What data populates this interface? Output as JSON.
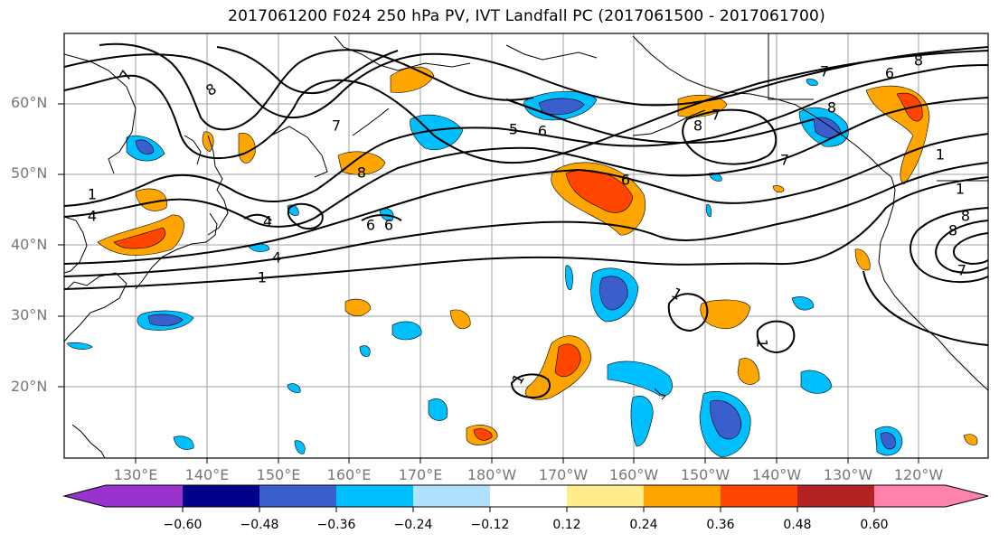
{
  "title": "2017061200 F024 250 hPa PV, IVT Landfall PC (2017061500 - 2017061700)",
  "lat_labels": [
    "60°N",
    "50°N",
    "40°N",
    "30°N",
    "20°N"
  ],
  "lon_labels": [
    "130°E",
    "140°E",
    "150°E",
    "160°E",
    "170°E",
    "180°W",
    "170°W",
    "160°W",
    "150°W",
    "140°W",
    "130°W",
    "120°W"
  ],
  "colorbar": {
    "ticks": [
      "−0.60",
      "−0.48",
      "−0.36",
      "−0.24",
      "−0.12",
      "0.12",
      "0.24",
      "0.36",
      "0.48",
      "0.60"
    ],
    "colors": [
      "#9a32cd",
      "#00008b",
      "#3a5fcd",
      "#00bfff",
      "#b0e2ff",
      "#ffffff",
      "#ffec8b",
      "#ffa500",
      "#ff4500",
      "#b22222",
      "#ff82ab"
    ]
  },
  "contour_labels": [
    "7",
    "8",
    "5",
    "6",
    "7",
    "8",
    "8",
    "6",
    "7",
    "1",
    "4",
    "4",
    "6",
    "6",
    "1",
    "8",
    "7",
    "8",
    "7",
    "4",
    "1",
    "1",
    "1",
    "1",
    "8",
    "7",
    "1",
    "6",
    "8"
  ],
  "colors": {
    "frame": "#000000",
    "grid": "#a0a0a0",
    "coast": "#000000",
    "label": "#777777"
  }
}
